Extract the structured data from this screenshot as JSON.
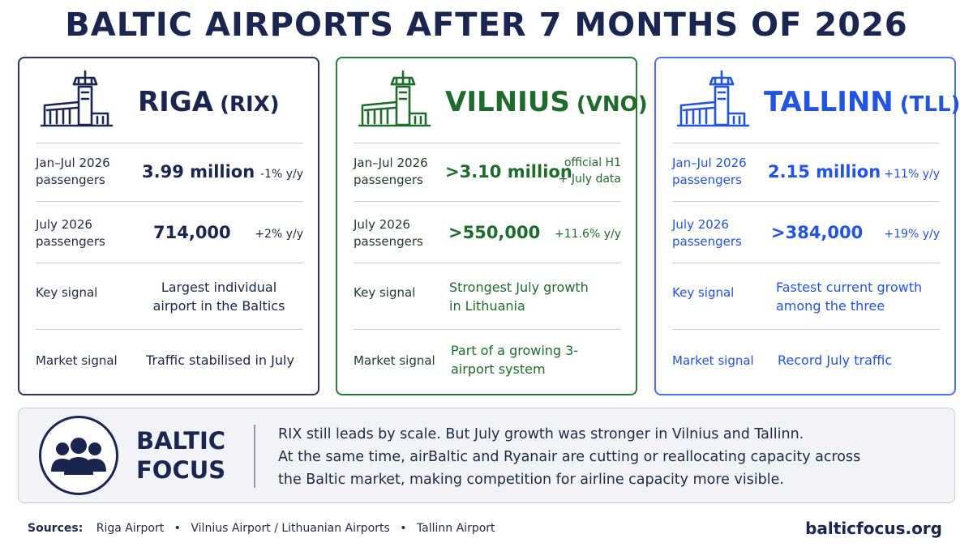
{
  "title": "BALTIC AIRPORTS AFTER 7 MONTHS OF 2026",
  "colors": {
    "riga": "#1b2650",
    "vilnius": "#1e6b2c",
    "tallinn": "#2354e0"
  },
  "cards": [
    {
      "name": "RIGA",
      "code": "(RIX)",
      "icon": "airport-tower-icon",
      "ytd_label": "Jan–Jul 2026 passengers",
      "ytd_value": "3.99 million",
      "ytd_change": "-1% y/y",
      "july_label": "July 2026 passengers",
      "july_value": "714,000",
      "july_change": "+2% y/y",
      "key_label": "Key signal",
      "key_text": "Largest individual airport in the Baltics",
      "market_label": "Market signal",
      "market_text": "Traffic stabilised in July"
    },
    {
      "name": "VILNIUS",
      "code": "(VNO)",
      "icon": "airport-tower-icon",
      "ytd_label": "Jan–Jul 2026 passengers",
      "ytd_value": ">3.10 million",
      "ytd_change": "official H1 + July data",
      "july_label": "July 2026 passengers",
      "july_value": ">550,000",
      "july_change": "+11.6% y/y",
      "key_label": "Key signal",
      "key_text": "Strongest July growth in Lithuania",
      "market_label": "Market signal",
      "market_text": "Part of a growing 3-airport system"
    },
    {
      "name": "TALLINN",
      "code": "(TLL)",
      "icon": "airport-tower-icon",
      "ytd_label": "Jan–Jul 2026 passengers",
      "ytd_value": "2.15 million",
      "ytd_change": "+11% y/y",
      "july_label": "July 2026 passengers",
      "july_value": ">384,000",
      "july_change": "+19% y/y",
      "key_label": "Key signal",
      "key_text": "Fastest current growth among the three",
      "market_label": "Market signal",
      "market_text": "Record July traffic"
    }
  ],
  "focus": {
    "icon": "people-group-icon",
    "title_line1": "BALTIC",
    "title_line2": "FOCUS",
    "line1": "RIX still leads by scale. But July growth was stronger in Vilnius and Tallinn.",
    "line2": "At the same time, airBaltic and Ryanair are cutting or reallocating capacity across",
    "line3": "the Baltic market, making competition for airline capacity more visible."
  },
  "footer": {
    "sources_label": "Sources:",
    "sources": [
      "Riga Airport",
      "Vilnius Airport / Lithuanian Airports",
      "Tallinn Airport"
    ],
    "separator": "•",
    "site": "balticfocus.org"
  }
}
